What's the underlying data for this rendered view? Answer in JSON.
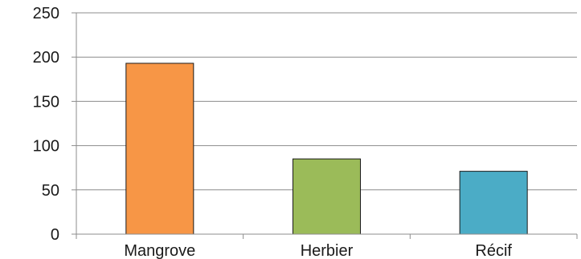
{
  "chart_data": {
    "type": "bar",
    "title": "",
    "xlabel": "",
    "ylabel": "",
    "categories": [
      "Mangrove",
      "Herbier",
      "Récif"
    ],
    "values": [
      193,
      85,
      71
    ],
    "colors": [
      "#f79646",
      "#9bbb59",
      "#4bacc6"
    ],
    "ylim": [
      0,
      250
    ],
    "yticks": [
      0,
      50,
      100,
      150,
      200,
      250
    ],
    "grid": true,
    "legend": "none"
  }
}
